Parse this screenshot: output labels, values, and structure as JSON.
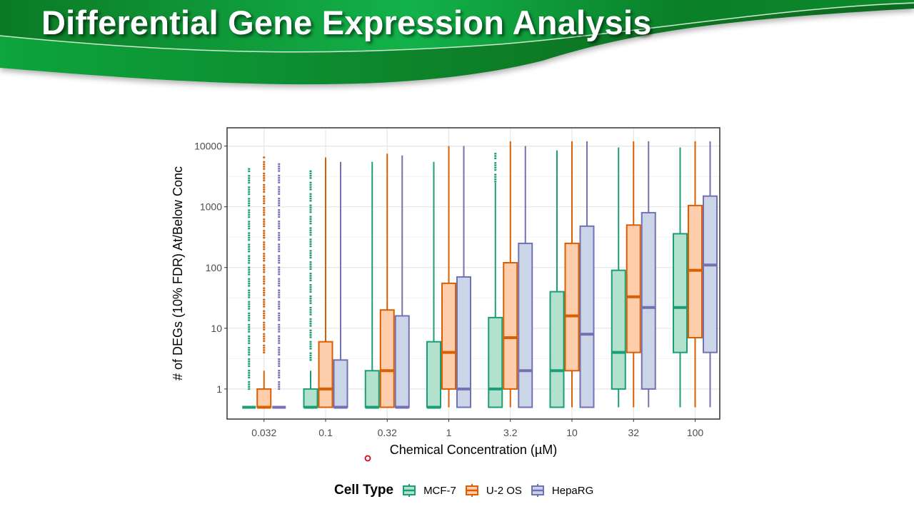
{
  "slide": {
    "title": "Differential Gene Expression Analysis",
    "banner_color": "#0a8a2e"
  },
  "chart_data": {
    "type": "box",
    "xlabel": "Chemical Concentration (µM)",
    "ylabel": "# of DEGs (10% FDR) At/Below Conc",
    "yscale": "log10",
    "ylim": [
      0.32,
      20000
    ],
    "yticks": [
      1,
      10,
      100,
      1000,
      10000
    ],
    "ytick_labels": [
      "1",
      "10",
      "100",
      "1000",
      "10000"
    ],
    "categories": [
      "0.032",
      "0.1",
      "0.32",
      "1",
      "3.2",
      "10",
      "32",
      "100"
    ],
    "grid": true,
    "legend": {
      "title": "Cell Type",
      "placement": "bottom"
    },
    "series": [
      {
        "name": "MCF-7",
        "stroke": "#1b9e77",
        "fill": "#b2e2cd",
        "boxes": [
          {
            "lower": 0.5,
            "q1": 0.5,
            "median": 0.5,
            "q3": 0.5,
            "upper": 0.5,
            "outliers": [
              1,
              4200
            ]
          },
          {
            "lower": 0.5,
            "q1": 0.5,
            "median": 0.5,
            "q3": 1,
            "upper": 2,
            "outliers": [
              3,
              4200
            ]
          },
          {
            "lower": 0.5,
            "q1": 0.5,
            "median": 0.5,
            "q3": 2,
            "upper": 5500,
            "outliers": null
          },
          {
            "lower": 0.5,
            "q1": 0.5,
            "median": 0.5,
            "q3": 6,
            "upper": 5500,
            "outliers": null
          },
          {
            "lower": 0.5,
            "q1": 0.5,
            "median": 1,
            "q3": 15,
            "upper": 2500,
            "outliers": [
              2600,
              7500
            ]
          },
          {
            "lower": 0.5,
            "q1": 0.5,
            "median": 2,
            "q3": 40,
            "upper": 8500,
            "outliers": null
          },
          {
            "lower": 0.5,
            "q1": 1,
            "median": 4,
            "q3": 90,
            "upper": 9500,
            "outliers": null
          },
          {
            "lower": 0.5,
            "q1": 4,
            "median": 22,
            "q3": 360,
            "upper": 9500,
            "outliers": null
          }
        ]
      },
      {
        "name": "U-2 OS",
        "stroke": "#d95f02",
        "fill": "#fdcdac",
        "boxes": [
          {
            "lower": 0.5,
            "q1": 0.5,
            "median": 0.5,
            "q3": 1,
            "upper": 2,
            "outliers": [
              4,
              6500
            ]
          },
          {
            "lower": 0.5,
            "q1": 0.5,
            "median": 1,
            "q3": 6,
            "upper": 6500,
            "outliers": null
          },
          {
            "lower": 0.5,
            "q1": 0.5,
            "median": 2,
            "q3": 20,
            "upper": 7500,
            "outliers": null
          },
          {
            "lower": 0.5,
            "q1": 1,
            "median": 4,
            "q3": 55,
            "upper": 10000,
            "outliers": null
          },
          {
            "lower": 0.5,
            "q1": 1,
            "median": 7,
            "q3": 120,
            "upper": 12000,
            "outliers": null
          },
          {
            "lower": 0.5,
            "q1": 2,
            "median": 16,
            "q3": 250,
            "upper": 12000,
            "outliers": null
          },
          {
            "lower": 0.5,
            "q1": 4,
            "median": 33,
            "q3": 500,
            "upper": 12000,
            "outliers": null
          },
          {
            "lower": 0.5,
            "q1": 7,
            "median": 90,
            "q3": 1050,
            "upper": 12000,
            "outliers": null
          }
        ]
      },
      {
        "name": "HepaRG",
        "stroke": "#7570b3",
        "fill": "#cbd5e8",
        "boxes": [
          {
            "lower": 0.5,
            "q1": 0.5,
            "median": 0.5,
            "q3": 0.5,
            "upper": 0.5,
            "outliers": [
              1,
              5500
            ]
          },
          {
            "lower": 0.5,
            "q1": 0.5,
            "median": 0.5,
            "q3": 3,
            "upper": 5500,
            "outliers": null
          },
          {
            "lower": 0.5,
            "q1": 0.5,
            "median": 0.5,
            "q3": 16,
            "upper": 7000,
            "outliers": null
          },
          {
            "lower": 0.5,
            "q1": 0.5,
            "median": 1,
            "q3": 70,
            "upper": 10000,
            "outliers": null
          },
          {
            "lower": 0.5,
            "q1": 0.5,
            "median": 2,
            "q3": 250,
            "upper": 10000,
            "outliers": null
          },
          {
            "lower": 0.5,
            "q1": 0.5,
            "median": 8,
            "q3": 480,
            "upper": 12000,
            "outliers": null
          },
          {
            "lower": 0.5,
            "q1": 1,
            "median": 22,
            "q3": 800,
            "upper": 12000,
            "outliers": null
          },
          {
            "lower": 0.5,
            "q1": 4,
            "median": 110,
            "q3": 1500,
            "upper": 12000,
            "outliers": null
          }
        ]
      }
    ]
  }
}
